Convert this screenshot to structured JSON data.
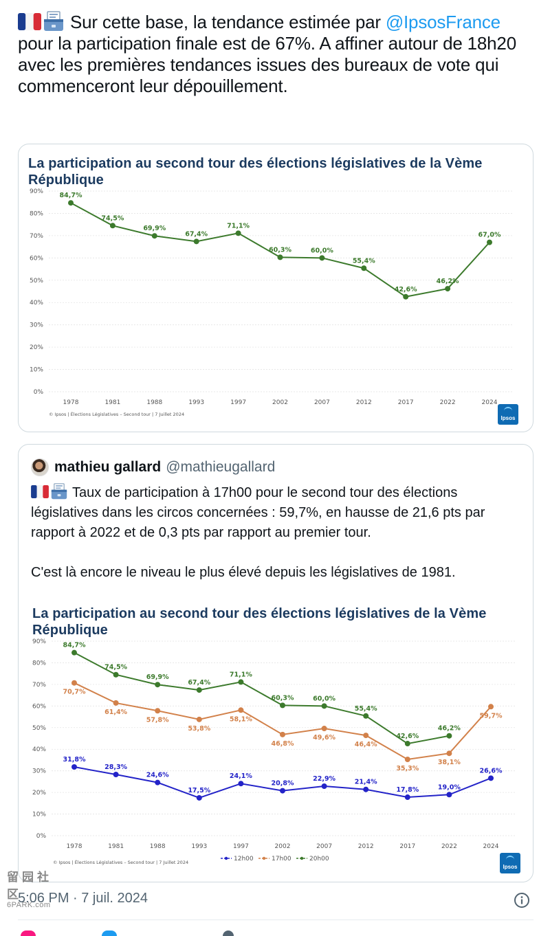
{
  "tweet": {
    "text_before": "Sur cette base, la tendance estimée par ",
    "mention": "@IpsosFrance",
    "text_after": " pour la participation finale est de 67%. A affiner autour de 18h20 avec les premières tendances issues des bureaux de vote qui commenceront leur dépouillement.",
    "timestamp": "5:06 PM · 7 juil. 2024"
  },
  "quote": {
    "name": "mathieu gallard",
    "handle": "@mathieugallard",
    "para1": "Taux de participation à 17h00 pour le second tour des élections législatives dans les circos concernées : 59,7%, en hausse de 21,6 pts par rapport à 2022 et de 0,3 pts par rapport au premier tour.",
    "para2": "C'est là encore le niveau le plus élevé depuis les législatives de 1981."
  },
  "ipsos_logo": "Ipsos",
  "watermark": {
    "glyphs": "留园社区",
    "url": "6PARK.com"
  },
  "colors": {
    "green": "#3c7a2c",
    "orange": "#d2814a",
    "blue": "#2323c8",
    "title": "#1b3a5f"
  },
  "chart_data": [
    {
      "type": "line",
      "title": "La participation au second tour des élections législatives de la Vème République",
      "source": "© Ipsos | Élections Législatives – Second tour | 7 Juillet 2024",
      "categories": [
        "1978",
        "1981",
        "1988",
        "1993",
        "1997",
        "2002",
        "2007",
        "2012",
        "2017",
        "2022",
        "2024"
      ],
      "ylim": [
        0,
        90
      ],
      "yticks": [
        "0%",
        "10%",
        "20%",
        "30%",
        "40%",
        "50%",
        "60%",
        "70%",
        "80%",
        "90%"
      ],
      "series": [
        {
          "name": "20h00",
          "color": "#3c7a2c",
          "values": [
            84.7,
            74.5,
            69.9,
            67.4,
            71.1,
            60.3,
            60.0,
            55.4,
            42.6,
            46.2,
            67.0
          ],
          "labels": [
            "84,7%",
            "74,5%",
            "69,9%",
            "67,4%",
            "71,1%",
            "60,3%",
            "60,0%",
            "55,4%",
            "42,6%",
            "46,2%",
            "67,0%"
          ]
        }
      ]
    },
    {
      "type": "line",
      "title": "La participation au second tour des élections législatives de la Vème République",
      "source": "© Ipsos | Élections Législatives – Second tour | 7 Juillet 2024",
      "categories": [
        "1978",
        "1981",
        "1988",
        "1993",
        "1997",
        "2002",
        "2007",
        "2012",
        "2017",
        "2022",
        "2024"
      ],
      "ylim": [
        0,
        90
      ],
      "yticks": [
        "0%",
        "10%",
        "20%",
        "30%",
        "40%",
        "50%",
        "60%",
        "70%",
        "80%",
        "90%"
      ],
      "legend": [
        "12h00",
        "17h00",
        "20h00"
      ],
      "series": [
        {
          "name": "12h00",
          "color": "#2323c8",
          "values": [
            31.8,
            28.3,
            24.6,
            17.5,
            24.1,
            20.8,
            22.9,
            21.4,
            17.8,
            19.0,
            26.6
          ],
          "labels": [
            "31,8%",
            "28,3%",
            "24,6%",
            "17,5%",
            "24,1%",
            "20,8%",
            "22,9%",
            "21,4%",
            "17,8%",
            "19,0%",
            "26,6%"
          ]
        },
        {
          "name": "17h00",
          "color": "#d2814a",
          "values": [
            70.7,
            61.4,
            57.8,
            53.8,
            58.1,
            46.8,
            49.6,
            46.4,
            35.3,
            38.1,
            59.7
          ],
          "labels": [
            "70,7%",
            "61,4%",
            "57,8%",
            "53,8%",
            "58,1%",
            "46,8%",
            "49,6%",
            "46,4%",
            "35,3%",
            "38,1%",
            "59,7%"
          ]
        },
        {
          "name": "20h00",
          "color": "#3c7a2c",
          "values": [
            84.7,
            74.5,
            69.9,
            67.4,
            71.1,
            60.3,
            60.0,
            55.4,
            42.6,
            46.2,
            null
          ],
          "labels": [
            "84,7%",
            "74,5%",
            "69,9%",
            "67,4%",
            "71,1%",
            "60,3%",
            "60,0%",
            "55,4%",
            "42,6%",
            "46,2%",
            null
          ]
        }
      ]
    }
  ]
}
